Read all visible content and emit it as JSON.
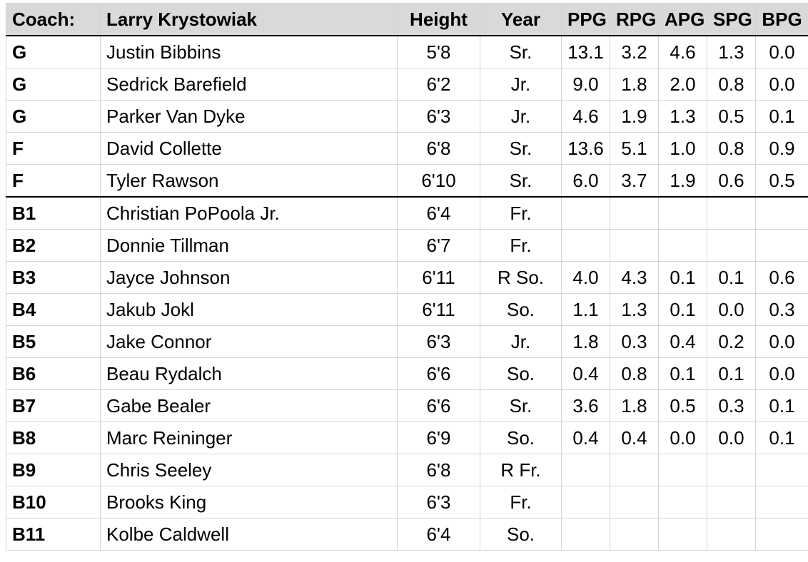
{
  "header": {
    "coach_label": "Coach:",
    "coach_name": "Larry Krystowiak",
    "height": "Height",
    "year": "Year",
    "ppg": "PPG",
    "rpg": "RPG",
    "apg": "APG",
    "spg": "SPG",
    "bpg": "BPG"
  },
  "rows": [
    {
      "pos": "G",
      "name": "Justin Bibbins",
      "height": "5'8",
      "year": "Sr.",
      "ppg": "13.1",
      "rpg": "3.2",
      "apg": "4.6",
      "spg": "1.3",
      "bpg": "0.0"
    },
    {
      "pos": "G",
      "name": "Sedrick Barefield",
      "height": "6'2",
      "year": "Jr.",
      "ppg": "9.0",
      "rpg": "1.8",
      "apg": "2.0",
      "spg": "0.8",
      "bpg": "0.0"
    },
    {
      "pos": "G",
      "name": "Parker Van Dyke",
      "height": "6'3",
      "year": "Jr.",
      "ppg": "4.6",
      "rpg": "1.9",
      "apg": "1.3",
      "spg": "0.5",
      "bpg": "0.1"
    },
    {
      "pos": "F",
      "name": "David Collette",
      "height": "6'8",
      "year": "Sr.",
      "ppg": "13.6",
      "rpg": "5.1",
      "apg": "1.0",
      "spg": "0.8",
      "bpg": "0.9"
    },
    {
      "pos": "F",
      "name": "Tyler Rawson",
      "height": "6'10",
      "year": "Sr.",
      "ppg": "6.0",
      "rpg": "3.7",
      "apg": "1.9",
      "spg": "0.6",
      "bpg": "0.5"
    },
    {
      "pos": "B1",
      "name": "Christian PoPoola Jr.",
      "height": "6'4",
      "year": "Fr.",
      "ppg": "",
      "rpg": "",
      "apg": "",
      "spg": "",
      "bpg": ""
    },
    {
      "pos": "B2",
      "name": "Donnie Tillman",
      "height": "6'7",
      "year": "Fr.",
      "ppg": "",
      "rpg": "",
      "apg": "",
      "spg": "",
      "bpg": ""
    },
    {
      "pos": "B3",
      "name": "Jayce Johnson",
      "height": "6'11",
      "year": "R So.",
      "ppg": "4.0",
      "rpg": "4.3",
      "apg": "0.1",
      "spg": "0.1",
      "bpg": "0.6"
    },
    {
      "pos": "B4",
      "name": "Jakub Jokl",
      "height": "6'11",
      "year": "So.",
      "ppg": "1.1",
      "rpg": "1.3",
      "apg": "0.1",
      "spg": "0.0",
      "bpg": "0.3"
    },
    {
      "pos": "B5",
      "name": "Jake Connor",
      "height": "6'3",
      "year": "Jr.",
      "ppg": "1.8",
      "rpg": "0.3",
      "apg": "0.4",
      "spg": "0.2",
      "bpg": "0.0"
    },
    {
      "pos": "B6",
      "name": "Beau Rydalch",
      "height": "6'6",
      "year": "So.",
      "ppg": "0.4",
      "rpg": "0.8",
      "apg": "0.1",
      "spg": "0.1",
      "bpg": "0.0"
    },
    {
      "pos": "B7",
      "name": "Gabe Bealer",
      "height": "6'6",
      "year": "Sr.",
      "ppg": "3.6",
      "rpg": "1.8",
      "apg": "0.5",
      "spg": "0.3",
      "bpg": "0.1"
    },
    {
      "pos": "B8",
      "name": "Marc Reininger",
      "height": "6'9",
      "year": "So.",
      "ppg": "0.4",
      "rpg": "0.4",
      "apg": "0.0",
      "spg": "0.0",
      "bpg": "0.1"
    },
    {
      "pos": "B9",
      "name": "Chris Seeley",
      "height": "6'8",
      "year": "R Fr.",
      "ppg": "",
      "rpg": "",
      "apg": "",
      "spg": "",
      "bpg": ""
    },
    {
      "pos": "B10",
      "name": "Brooks King",
      "height": "6'3",
      "year": "Fr.",
      "ppg": "",
      "rpg": "",
      "apg": "",
      "spg": "",
      "bpg": ""
    },
    {
      "pos": "B11",
      "name": "Kolbe Caldwell",
      "height": "6'4",
      "year": "So.",
      "ppg": "",
      "rpg": "",
      "apg": "",
      "spg": "",
      "bpg": ""
    }
  ]
}
